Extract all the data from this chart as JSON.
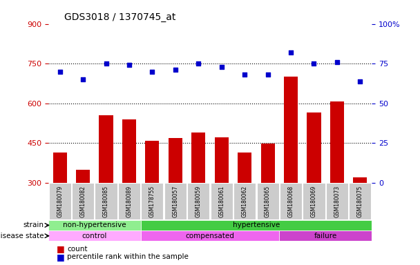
{
  "title": "GDS3018 / 1370745_at",
  "samples": [
    "GSM180079",
    "GSM180082",
    "GSM180085",
    "GSM180089",
    "GSM178755",
    "GSM180057",
    "GSM180059",
    "GSM180061",
    "GSM180062",
    "GSM180065",
    "GSM180068",
    "GSM180069",
    "GSM180073",
    "GSM180075"
  ],
  "counts": [
    415,
    350,
    555,
    540,
    460,
    468,
    490,
    473,
    415,
    448,
    700,
    565,
    608,
    322
  ],
  "percentile_ranks": [
    70,
    65,
    75,
    74,
    70,
    71,
    75,
    73,
    68,
    68,
    82,
    75,
    76,
    64
  ],
  "ylim_left": [
    300,
    900
  ],
  "ylim_right": [
    0,
    100
  ],
  "yticks_left": [
    300,
    450,
    600,
    750,
    900
  ],
  "yticks_right": [
    0,
    25,
    50,
    75,
    100
  ],
  "ytick_labels_right": [
    "0",
    "25",
    "50",
    "75",
    "100%"
  ],
  "ytick_labels_left": [
    "300",
    "450",
    "600",
    "750",
    "900"
  ],
  "bar_color": "#cc0000",
  "dot_color": "#0000cc",
  "strain_groups": [
    {
      "label": "non-hypertensive",
      "start": 0,
      "end": 4,
      "color": "#90ee90"
    },
    {
      "label": "hypertensive",
      "start": 4,
      "end": 14,
      "color": "#44cc44"
    }
  ],
  "disease_colors": [
    "#ffaaff",
    "#ee66ee",
    "#cc44cc"
  ],
  "disease_groups": [
    {
      "label": "control",
      "start": 0,
      "end": 4
    },
    {
      "label": "compensated",
      "start": 4,
      "end": 10
    },
    {
      "label": "failure",
      "start": 10,
      "end": 14
    }
  ],
  "strain_label": "strain",
  "disease_label": "disease state",
  "legend_count_label": "count",
  "legend_percentile_label": "percentile rank within the sample",
  "bar_color_legend": "#cc0000",
  "dot_color_legend": "#0000cc",
  "bg_color": "#ffffff",
  "xticklabel_bg": "#cccccc",
  "hline_color": "black",
  "hlines": [
    450,
    600,
    750
  ],
  "hline_style": "dotted",
  "hline_lw": 0.8
}
